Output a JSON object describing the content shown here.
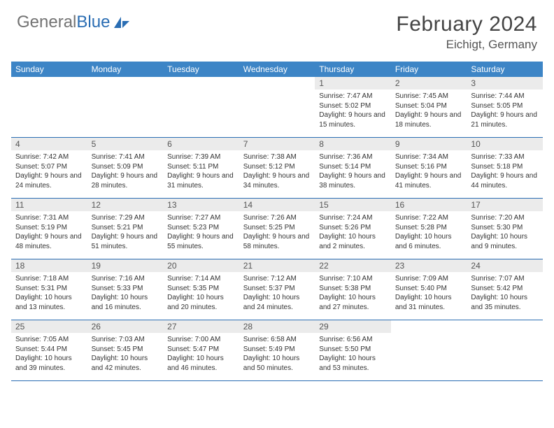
{
  "logo": {
    "text_gray": "General",
    "text_blue": "Blue"
  },
  "title": "February 2024",
  "location": "Eichigt, Germany",
  "colors": {
    "header_bg": "#3d85c6",
    "daynum_bg": "#ebebeb",
    "week_border": "#2a6db3"
  },
  "day_names": [
    "Sunday",
    "Monday",
    "Tuesday",
    "Wednesday",
    "Thursday",
    "Friday",
    "Saturday"
  ],
  "weeks": [
    [
      null,
      null,
      null,
      null,
      {
        "n": "1",
        "sr": "7:47 AM",
        "ss": "5:02 PM",
        "dl": "9 hours and 15 minutes."
      },
      {
        "n": "2",
        "sr": "7:45 AM",
        "ss": "5:04 PM",
        "dl": "9 hours and 18 minutes."
      },
      {
        "n": "3",
        "sr": "7:44 AM",
        "ss": "5:05 PM",
        "dl": "9 hours and 21 minutes."
      }
    ],
    [
      {
        "n": "4",
        "sr": "7:42 AM",
        "ss": "5:07 PM",
        "dl": "9 hours and 24 minutes."
      },
      {
        "n": "5",
        "sr": "7:41 AM",
        "ss": "5:09 PM",
        "dl": "9 hours and 28 minutes."
      },
      {
        "n": "6",
        "sr": "7:39 AM",
        "ss": "5:11 PM",
        "dl": "9 hours and 31 minutes."
      },
      {
        "n": "7",
        "sr": "7:38 AM",
        "ss": "5:12 PM",
        "dl": "9 hours and 34 minutes."
      },
      {
        "n": "8",
        "sr": "7:36 AM",
        "ss": "5:14 PM",
        "dl": "9 hours and 38 minutes."
      },
      {
        "n": "9",
        "sr": "7:34 AM",
        "ss": "5:16 PM",
        "dl": "9 hours and 41 minutes."
      },
      {
        "n": "10",
        "sr": "7:33 AM",
        "ss": "5:18 PM",
        "dl": "9 hours and 44 minutes."
      }
    ],
    [
      {
        "n": "11",
        "sr": "7:31 AM",
        "ss": "5:19 PM",
        "dl": "9 hours and 48 minutes."
      },
      {
        "n": "12",
        "sr": "7:29 AM",
        "ss": "5:21 PM",
        "dl": "9 hours and 51 minutes."
      },
      {
        "n": "13",
        "sr": "7:27 AM",
        "ss": "5:23 PM",
        "dl": "9 hours and 55 minutes."
      },
      {
        "n": "14",
        "sr": "7:26 AM",
        "ss": "5:25 PM",
        "dl": "9 hours and 58 minutes."
      },
      {
        "n": "15",
        "sr": "7:24 AM",
        "ss": "5:26 PM",
        "dl": "10 hours and 2 minutes."
      },
      {
        "n": "16",
        "sr": "7:22 AM",
        "ss": "5:28 PM",
        "dl": "10 hours and 6 minutes."
      },
      {
        "n": "17",
        "sr": "7:20 AM",
        "ss": "5:30 PM",
        "dl": "10 hours and 9 minutes."
      }
    ],
    [
      {
        "n": "18",
        "sr": "7:18 AM",
        "ss": "5:31 PM",
        "dl": "10 hours and 13 minutes."
      },
      {
        "n": "19",
        "sr": "7:16 AM",
        "ss": "5:33 PM",
        "dl": "10 hours and 16 minutes."
      },
      {
        "n": "20",
        "sr": "7:14 AM",
        "ss": "5:35 PM",
        "dl": "10 hours and 20 minutes."
      },
      {
        "n": "21",
        "sr": "7:12 AM",
        "ss": "5:37 PM",
        "dl": "10 hours and 24 minutes."
      },
      {
        "n": "22",
        "sr": "7:10 AM",
        "ss": "5:38 PM",
        "dl": "10 hours and 27 minutes."
      },
      {
        "n": "23",
        "sr": "7:09 AM",
        "ss": "5:40 PM",
        "dl": "10 hours and 31 minutes."
      },
      {
        "n": "24",
        "sr": "7:07 AM",
        "ss": "5:42 PM",
        "dl": "10 hours and 35 minutes."
      }
    ],
    [
      {
        "n": "25",
        "sr": "7:05 AM",
        "ss": "5:44 PM",
        "dl": "10 hours and 39 minutes."
      },
      {
        "n": "26",
        "sr": "7:03 AM",
        "ss": "5:45 PM",
        "dl": "10 hours and 42 minutes."
      },
      {
        "n": "27",
        "sr": "7:00 AM",
        "ss": "5:47 PM",
        "dl": "10 hours and 46 minutes."
      },
      {
        "n": "28",
        "sr": "6:58 AM",
        "ss": "5:49 PM",
        "dl": "10 hours and 50 minutes."
      },
      {
        "n": "29",
        "sr": "6:56 AM",
        "ss": "5:50 PM",
        "dl": "10 hours and 53 minutes."
      },
      null,
      null
    ]
  ],
  "labels": {
    "sunrise": "Sunrise:",
    "sunset": "Sunset:",
    "daylight": "Daylight:"
  }
}
